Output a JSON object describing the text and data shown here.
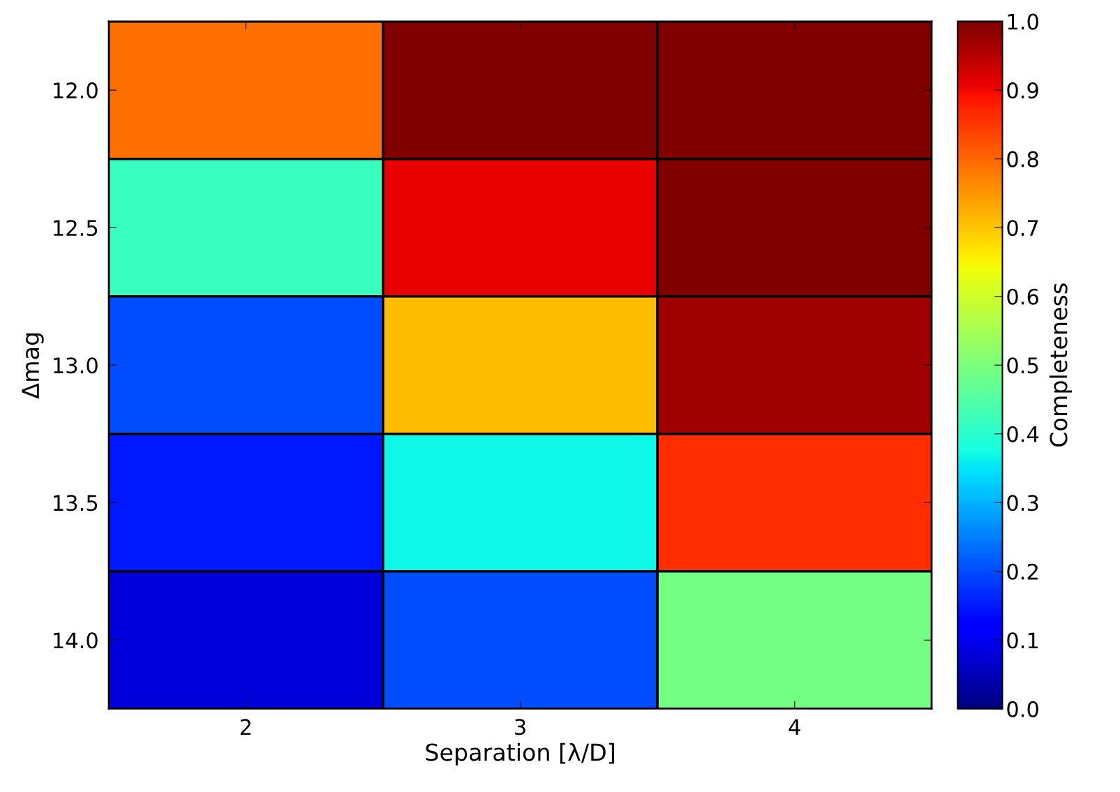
{
  "chart_data": {
    "type": "heatmap",
    "xlabel": "Separation [λ/D]",
    "ylabel": "Δmag",
    "clabel": "Completeness",
    "categories": [
      "2",
      "3",
      "4"
    ],
    "y_categories": [
      "12.0",
      "12.5",
      "13.0",
      "13.5",
      "14.0"
    ],
    "cells": [
      [
        0.79,
        1.0,
        1.0
      ],
      [
        0.42,
        0.91,
        1.0
      ],
      [
        0.2,
        0.71,
        0.97
      ],
      [
        0.15,
        0.37,
        0.86
      ],
      [
        0.08,
        0.2,
        0.49
      ]
    ],
    "clim": [
      0.0,
      1.0
    ],
    "cticks": [
      {
        "value": 0.0,
        "label": "0.0"
      },
      0.1,
      0.2,
      0.3,
      0.4,
      0.5,
      0.6,
      0.7,
      0.8,
      0.9,
      {
        "value": 1.0,
        "label": "1.0"
      }
    ]
  }
}
